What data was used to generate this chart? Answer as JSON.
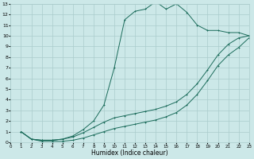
{
  "xlabel": "Humidex (Indice chaleur)",
  "bg_color": "#cce8e8",
  "grid_color": "#aacccc",
  "line_color": "#1a6b5a",
  "line_peak_x": [
    1,
    2,
    3,
    4,
    5,
    6,
    7,
    8,
    9,
    10,
    11,
    12,
    13,
    14,
    15,
    16,
    17,
    18,
    19,
    20,
    21,
    22,
    23
  ],
  "line_peak_y": [
    1,
    0.3,
    0.2,
    0.2,
    0.3,
    0.6,
    1.2,
    2.0,
    3.5,
    7.0,
    11.5,
    12.3,
    12.5,
    13.2,
    12.5,
    13.0,
    12.2,
    11.0,
    10.5,
    10.5,
    10.3,
    10.3,
    10.0
  ],
  "line_high_x": [
    1,
    2,
    3,
    4,
    5,
    6,
    7,
    8,
    9,
    10,
    11,
    12,
    13,
    14,
    15,
    16,
    17,
    18,
    19,
    20,
    21,
    22,
    23
  ],
  "line_high_y": [
    1,
    0.3,
    0.2,
    0.2,
    0.3,
    0.5,
    0.9,
    1.4,
    1.9,
    2.3,
    2.5,
    2.7,
    2.9,
    3.1,
    3.4,
    3.8,
    4.5,
    5.5,
    6.8,
    8.2,
    9.2,
    9.8,
    10.0
  ],
  "line_low_x": [
    1,
    2,
    3,
    4,
    5,
    6,
    7,
    8,
    9,
    10,
    11,
    12,
    13,
    14,
    15,
    16,
    17,
    18,
    19,
    20,
    21,
    22,
    23
  ],
  "line_low_y": [
    1,
    0.3,
    0.1,
    0.1,
    0.1,
    0.2,
    0.4,
    0.7,
    1.0,
    1.3,
    1.5,
    1.7,
    1.9,
    2.1,
    2.4,
    2.8,
    3.5,
    4.5,
    5.8,
    7.2,
    8.2,
    8.9,
    9.8
  ],
  "xlim": [
    0,
    23
  ],
  "ylim": [
    0,
    13
  ],
  "xticks": [
    0,
    1,
    2,
    3,
    4,
    5,
    6,
    7,
    8,
    9,
    10,
    11,
    12,
    13,
    14,
    15,
    16,
    17,
    18,
    19,
    20,
    21,
    22,
    23
  ],
  "yticks": [
    0,
    1,
    2,
    3,
    4,
    5,
    6,
    7,
    8,
    9,
    10,
    11,
    12,
    13
  ]
}
